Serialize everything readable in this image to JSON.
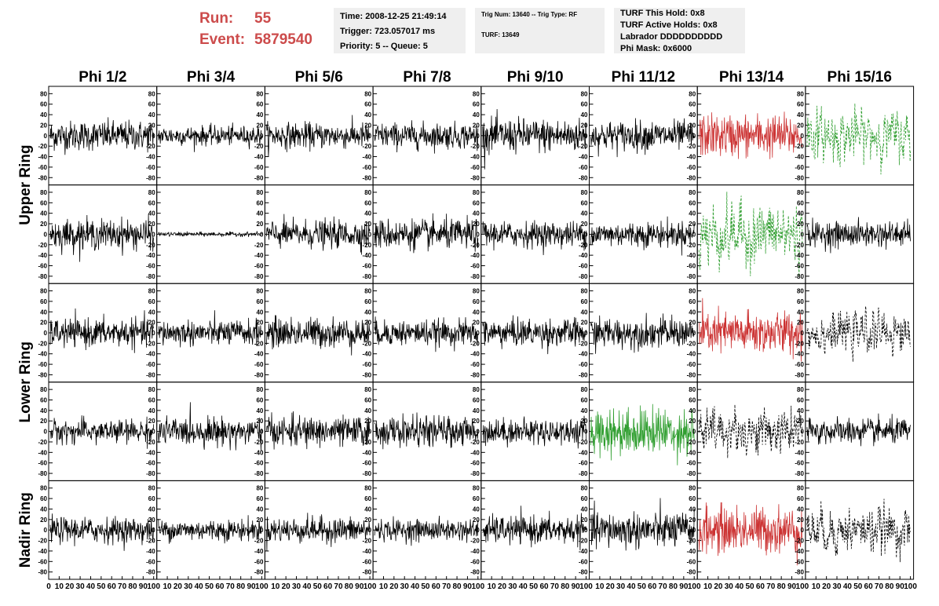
{
  "run_info": {
    "run_label": "Run:",
    "run_value": "55",
    "event_label": "Event:",
    "event_value": "5879540"
  },
  "header_box1": {
    "time": "Time: 2008-12-25 21:49:14",
    "trigger": "Trigger: 723.057017 ms",
    "priority": "Priority: 5 -- Queue: 5"
  },
  "header_box2": {
    "trig_num": "Trig Num: 13640 -- Trig Type: RF",
    "turf": "TURF: 13649"
  },
  "header_box3": {
    "this_hold": "TURF This Hold: 0x8",
    "active_holds": "TURF Active Holds: 0x8",
    "labrador": "Labrador DDDDDDDDDD",
    "phi_mask": "Phi Mask: 0x6000"
  },
  "colors": {
    "normal": "#000000",
    "red": "#cc3333",
    "green": "#2f9e2f",
    "run_text": "#cc4b4b"
  },
  "chart_data": {
    "type": "line",
    "columns": [
      "Phi 1/2",
      "Phi 3/4",
      "Phi 5/6",
      "Phi 7/8",
      "Phi 9/10",
      "Phi 11/12",
      "Phi 13/14",
      "Phi 15/16"
    ],
    "ring_labels": [
      "Upper Ring",
      "Lower Ring",
      "Nadir Ring"
    ],
    "rows": 5,
    "y_ticks": [
      "80",
      "60",
      "40",
      "20",
      "0",
      "-20",
      "-40",
      "-60",
      "-80"
    ],
    "ylim": [
      -85,
      85
    ],
    "x_ticks_first": [
      "0",
      "10",
      "20",
      "30",
      "40",
      "50",
      "60",
      "70",
      "80",
      "90",
      "100"
    ],
    "x_ticks_rest": [
      "10",
      "20",
      "30",
      "40",
      "50",
      "60",
      "70",
      "80",
      "90",
      "100"
    ],
    "xlim": [
      0,
      100
    ],
    "panels": [
      [
        {
          "color": "normal",
          "amp": 14,
          "style": "solid"
        },
        {
          "color": "normal",
          "amp": 9,
          "style": "solid"
        },
        {
          "color": "normal",
          "amp": 12,
          "style": "solid"
        },
        {
          "color": "normal",
          "amp": 12,
          "style": "solid"
        },
        {
          "color": "normal",
          "amp": 16,
          "style": "solid"
        },
        {
          "color": "normal",
          "amp": 14,
          "style": "solid"
        },
        {
          "color": "red",
          "amp": 20,
          "style": "solid"
        },
        {
          "color": "green",
          "amp": 35,
          "style": "dashed"
        }
      ],
      [
        {
          "color": "normal",
          "amp": 14,
          "style": "solid"
        },
        {
          "color": "normal",
          "amp": 2,
          "style": "solid"
        },
        {
          "color": "normal",
          "amp": 13,
          "style": "solid"
        },
        {
          "color": "normal",
          "amp": 14,
          "style": "solid"
        },
        {
          "color": "normal",
          "amp": 12,
          "style": "solid"
        },
        {
          "color": "normal",
          "amp": 12,
          "style": "solid"
        },
        {
          "color": "green",
          "amp": 45,
          "style": "dashed"
        },
        {
          "color": "normal",
          "amp": 12,
          "style": "solid"
        }
      ],
      [
        {
          "color": "normal",
          "amp": 13,
          "style": "solid"
        },
        {
          "color": "normal",
          "amp": 12,
          "style": "solid"
        },
        {
          "color": "normal",
          "amp": 14,
          "style": "solid"
        },
        {
          "color": "normal",
          "amp": 12,
          "style": "solid"
        },
        {
          "color": "normal",
          "amp": 13,
          "style": "solid"
        },
        {
          "color": "normal",
          "amp": 14,
          "style": "solid"
        },
        {
          "color": "red",
          "amp": 20,
          "style": "solid"
        },
        {
          "color": "normal",
          "amp": 28,
          "style": "dashed"
        }
      ],
      [
        {
          "color": "normal",
          "amp": 11,
          "style": "solid"
        },
        {
          "color": "normal",
          "amp": 13,
          "style": "solid"
        },
        {
          "color": "normal",
          "amp": 14,
          "style": "solid"
        },
        {
          "color": "normal",
          "amp": 14,
          "style": "solid"
        },
        {
          "color": "normal",
          "amp": 12,
          "style": "solid"
        },
        {
          "color": "green",
          "amp": 22,
          "style": "solid"
        },
        {
          "color": "normal",
          "amp": 32,
          "style": "dashed"
        },
        {
          "color": "normal",
          "amp": 12,
          "style": "solid"
        }
      ],
      [
        {
          "color": "normal",
          "amp": 12,
          "style": "solid"
        },
        {
          "color": "normal",
          "amp": 10,
          "style": "solid"
        },
        {
          "color": "normal",
          "amp": 12,
          "style": "solid"
        },
        {
          "color": "normal",
          "amp": 10,
          "style": "solid"
        },
        {
          "color": "normal",
          "amp": 13,
          "style": "solid"
        },
        {
          "color": "normal",
          "amp": 17,
          "style": "solid"
        },
        {
          "color": "red",
          "amp": 22,
          "style": "solid"
        },
        {
          "color": "normal",
          "amp": 32,
          "style": "dashed"
        }
      ]
    ]
  }
}
